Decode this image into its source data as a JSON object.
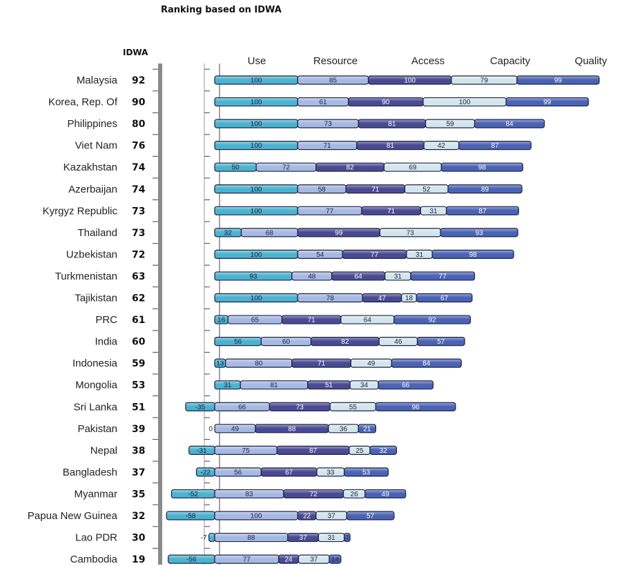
{
  "chart_data": {
    "type": "bar",
    "stacked": true,
    "orientation": "horizontal",
    "title": "Ranking based on IDWA",
    "idwa_header": "IDWA",
    "component_headers": [
      "Use",
      "Resource",
      "Access",
      "Capacity",
      "Quality"
    ],
    "colors": {
      "Use": "#4bb3cf",
      "Resource": "#a6b9e2",
      "Access": "#4a4a94",
      "Capacity": "#d2e5ec",
      "Quality": "#4a63b5"
    },
    "rows": [
      {
        "country": "Malaysia",
        "idwa": 92,
        "values": [
          100,
          85,
          100,
          79,
          99
        ]
      },
      {
        "country": "Korea, Rep. Of",
        "idwa": 90,
        "values": [
          100,
          61,
          90,
          100,
          99
        ]
      },
      {
        "country": "Philippines",
        "idwa": 80,
        "values": [
          100,
          73,
          81,
          59,
          84
        ]
      },
      {
        "country": "Viet Nam",
        "idwa": 76,
        "values": [
          100,
          71,
          81,
          42,
          87
        ]
      },
      {
        "country": "Kazakhstan",
        "idwa": 74,
        "values": [
          50,
          72,
          82,
          69,
          98
        ]
      },
      {
        "country": "Azerbaijan",
        "idwa": 74,
        "values": [
          100,
          58,
          71,
          52,
          89
        ]
      },
      {
        "country": "Kyrgyz Republic",
        "idwa": 73,
        "values": [
          100,
          77,
          71,
          31,
          87
        ]
      },
      {
        "country": "Thailand",
        "idwa": 73,
        "values": [
          32,
          68,
          99,
          73,
          93
        ]
      },
      {
        "country": "Uzbekistan",
        "idwa": 72,
        "values": [
          100,
          54,
          77,
          31,
          98
        ]
      },
      {
        "country": "Turkmenistan",
        "idwa": 63,
        "values": [
          93,
          48,
          64,
          31,
          77
        ]
      },
      {
        "country": "Tajikistan",
        "idwa": 62,
        "values": [
          100,
          78,
          47,
          18,
          67
        ]
      },
      {
        "country": "PRC",
        "idwa": 61,
        "values": [
          16,
          65,
          71,
          64,
          92
        ]
      },
      {
        "country": "India",
        "idwa": 60,
        "values": [
          56,
          60,
          82,
          46,
          57
        ]
      },
      {
        "country": "Indonesia",
        "idwa": 59,
        "values": [
          13,
          80,
          71,
          49,
          84
        ]
      },
      {
        "country": "Mongolia",
        "idwa": 53,
        "values": [
          31,
          81,
          51,
          34,
          66
        ]
      },
      {
        "country": "Sri Lanka",
        "idwa": 51,
        "values": [
          -35,
          66,
          73,
          55,
          96
        ]
      },
      {
        "country": "Pakistan",
        "idwa": 39,
        "values": [
          0,
          49,
          88,
          36,
          21
        ]
      },
      {
        "country": "Nepal",
        "idwa": 38,
        "values": [
          -31,
          75,
          87,
          25,
          32
        ]
      },
      {
        "country": "Bangladesh",
        "idwa": 37,
        "values": [
          -22,
          56,
          67,
          33,
          53
        ]
      },
      {
        "country": "Myanmar",
        "idwa": 35,
        "values": [
          -52,
          83,
          72,
          26,
          49
        ]
      },
      {
        "country": "Papua New Guinea",
        "idwa": 32,
        "values": [
          -58,
          100,
          22,
          37,
          57
        ]
      },
      {
        "country": "Lao PDR",
        "idwa": 30,
        "values": [
          -7,
          88,
          37,
          31,
          7
        ]
      },
      {
        "country": "Cambodia",
        "idwa": 19,
        "values": [
          -56,
          77,
          24,
          37,
          14
        ]
      }
    ],
    "external_value_labels": [
      "0",
      "-22",
      "-7"
    ]
  }
}
